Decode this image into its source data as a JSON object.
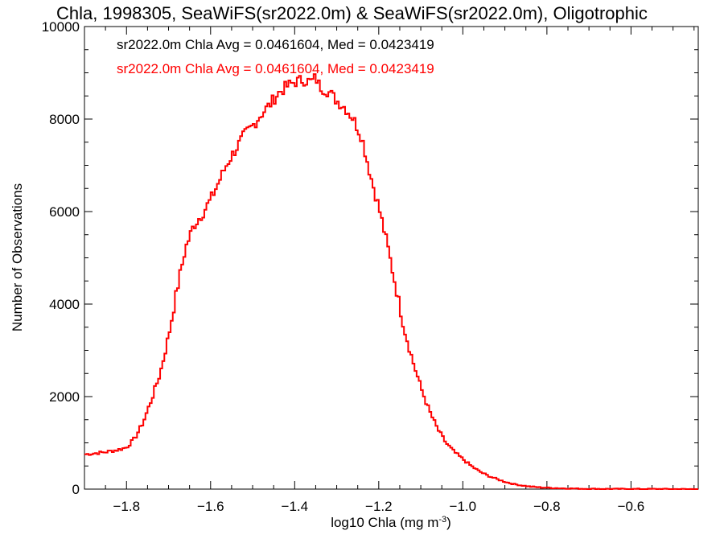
{
  "chart_data": {
    "type": "line",
    "title": "Chla, 1998305, SeaWiFS(sr2022.0m) & SeaWiFS(sr2022.0m), Oligotrophic",
    "xlabel": {
      "base": "log10 Chla (mg m",
      "sup": "-3",
      "close": ")"
    },
    "ylabel": "Number of Observations",
    "xlim": [
      -1.9,
      -0.44
    ],
    "ylim": [
      0,
      10000
    ],
    "x_ticks": [
      -1.8,
      -1.6,
      -1.4,
      -1.2,
      -1.0,
      -0.8,
      -0.6
    ],
    "x_tick_labels": [
      "−1.8",
      "−1.6",
      "−1.4",
      "−1.2",
      "−1.0",
      "−0.8",
      "−0.6"
    ],
    "y_ticks": [
      0,
      2000,
      4000,
      6000,
      8000,
      10000
    ],
    "y_tick_labels": [
      "0",
      "2000",
      "4000",
      "6000",
      "8000",
      "10000"
    ],
    "grid": false,
    "step": true,
    "annotations": [
      {
        "text": "sr2022.0m Chla Avg = 0.0461604, Med = 0.0423419",
        "color": "#000000"
      },
      {
        "text": "sr2022.0m Chla Avg = 0.0461604, Med = 0.0423419",
        "color": "#ff0000"
      }
    ],
    "series": [
      {
        "color": "#ff0000",
        "x": [
          -1.9,
          -1.85,
          -1.82,
          -1.8,
          -1.78,
          -1.76,
          -1.74,
          -1.72,
          -1.7,
          -1.68,
          -1.66,
          -1.64,
          -1.62,
          -1.6,
          -1.58,
          -1.56,
          -1.54,
          -1.52,
          -1.5,
          -1.48,
          -1.46,
          -1.44,
          -1.42,
          -1.4,
          -1.38,
          -1.36,
          -1.35,
          -1.34,
          -1.33,
          -1.32,
          -1.3,
          -1.28,
          -1.26,
          -1.24,
          -1.22,
          -1.2,
          -1.18,
          -1.16,
          -1.14,
          -1.12,
          -1.1,
          -1.08,
          -1.06,
          -1.04,
          -1.02,
          -1.0,
          -0.98,
          -0.96,
          -0.94,
          -0.92,
          -0.9,
          -0.88,
          -0.86,
          -0.84,
          -0.82,
          -0.8,
          -0.78,
          -0.76,
          -0.74,
          -0.72,
          -0.7,
          -0.65,
          -0.6,
          -0.55,
          -0.5,
          -0.44
        ],
        "y": [
          750,
          800,
          850,
          900,
          1100,
          1450,
          1950,
          2500,
          3300,
          4300,
          5200,
          5700,
          5950,
          6250,
          6650,
          7050,
          7350,
          7650,
          7850,
          8100,
          8300,
          8550,
          8700,
          8800,
          8850,
          8800,
          8900,
          8700,
          8650,
          8600,
          8400,
          8250,
          8000,
          7600,
          6800,
          6100,
          5300,
          4400,
          3500,
          2800,
          2200,
          1700,
          1300,
          1000,
          800,
          650,
          500,
          380,
          290,
          220,
          160,
          110,
          80,
          55,
          40,
          30,
          22,
          16,
          12,
          9,
          6,
          4,
          3,
          2,
          1,
          0
        ]
      }
    ]
  }
}
